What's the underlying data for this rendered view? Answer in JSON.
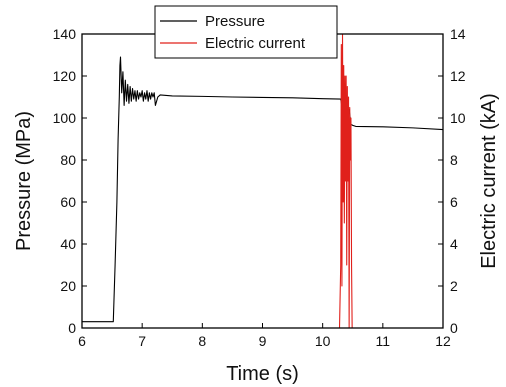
{
  "chart_data": {
    "type": "line",
    "xlabel": "Time (s)",
    "ylabel_left": "Pressure (MPa)",
    "ylabel_right": "Electric current (kA)",
    "xlim": [
      6,
      12
    ],
    "ylim_left": [
      0,
      140
    ],
    "ylim_right": [
      0,
      14
    ],
    "x_ticks": [
      6,
      7,
      8,
      9,
      10,
      11,
      12
    ],
    "y_ticks_left": [
      0,
      20,
      40,
      60,
      80,
      100,
      120,
      140
    ],
    "y_ticks_right": [
      0,
      2,
      4,
      6,
      8,
      10,
      12,
      14
    ],
    "grid": false,
    "legend_position": "top-center",
    "series": [
      {
        "name": "Pressure",
        "axis": "left",
        "color": "#000000",
        "points": [
          [
            6.0,
            3
          ],
          [
            6.5,
            3
          ],
          [
            6.52,
            3
          ],
          [
            6.55,
            30
          ],
          [
            6.58,
            60
          ],
          [
            6.6,
            90
          ],
          [
            6.62,
            110
          ],
          [
            6.63,
            125
          ],
          [
            6.64,
            129
          ],
          [
            6.66,
            112
          ],
          [
            6.68,
            122
          ],
          [
            6.7,
            106
          ],
          [
            6.72,
            118
          ],
          [
            6.74,
            108
          ],
          [
            6.76,
            116
          ],
          [
            6.78,
            107
          ],
          [
            6.8,
            115
          ],
          [
            6.82,
            108
          ],
          [
            6.84,
            114
          ],
          [
            6.86,
            109
          ],
          [
            6.88,
            113
          ],
          [
            6.9,
            108
          ],
          [
            6.92,
            113
          ],
          [
            6.94,
            109
          ],
          [
            6.96,
            112
          ],
          [
            6.98,
            110
          ],
          [
            7.0,
            113
          ],
          [
            7.02,
            108
          ],
          [
            7.04,
            112
          ],
          [
            7.06,
            109
          ],
          [
            7.08,
            113
          ],
          [
            7.1,
            108
          ],
          [
            7.12,
            112
          ],
          [
            7.14,
            109
          ],
          [
            7.16,
            112
          ],
          [
            7.18,
            110
          ],
          [
            7.2,
            112
          ],
          [
            7.22,
            106
          ],
          [
            7.24,
            108
          ],
          [
            7.26,
            110
          ],
          [
            7.3,
            111
          ],
          [
            7.5,
            110.5
          ],
          [
            8.0,
            110.3
          ],
          [
            8.5,
            110.0
          ],
          [
            9.0,
            109.8
          ],
          [
            9.5,
            109.6
          ],
          [
            10.0,
            109.2
          ],
          [
            10.3,
            109.0
          ],
          [
            10.35,
            100
          ],
          [
            10.38,
            108
          ],
          [
            10.41,
            98
          ],
          [
            10.44,
            104
          ],
          [
            10.47,
            97
          ],
          [
            10.5,
            96.5
          ],
          [
            10.55,
            96
          ],
          [
            11.0,
            95.8
          ],
          [
            11.5,
            95.3
          ],
          [
            12.0,
            94.5
          ]
        ]
      },
      {
        "name": "Electric current",
        "axis": "right",
        "color": "#e0201b",
        "points": [
          [
            6.0,
            0
          ],
          [
            10.28,
            0
          ],
          [
            10.3,
            3
          ],
          [
            10.31,
            13.5
          ],
          [
            10.32,
            2
          ],
          [
            10.33,
            14
          ],
          [
            10.34,
            6
          ],
          [
            10.35,
            12.5
          ],
          [
            10.36,
            5
          ],
          [
            10.37,
            12
          ],
          [
            10.38,
            7
          ],
          [
            10.39,
            12
          ],
          [
            10.4,
            3
          ],
          [
            10.41,
            11.5
          ],
          [
            10.42,
            7
          ],
          [
            10.43,
            11
          ],
          [
            10.44,
            0
          ],
          [
            10.45,
            10.5
          ],
          [
            10.46,
            8
          ],
          [
            10.47,
            10
          ],
          [
            10.48,
            3
          ],
          [
            10.49,
            0
          ],
          [
            10.5,
            0
          ],
          [
            12.0,
            0
          ]
        ]
      }
    ]
  }
}
